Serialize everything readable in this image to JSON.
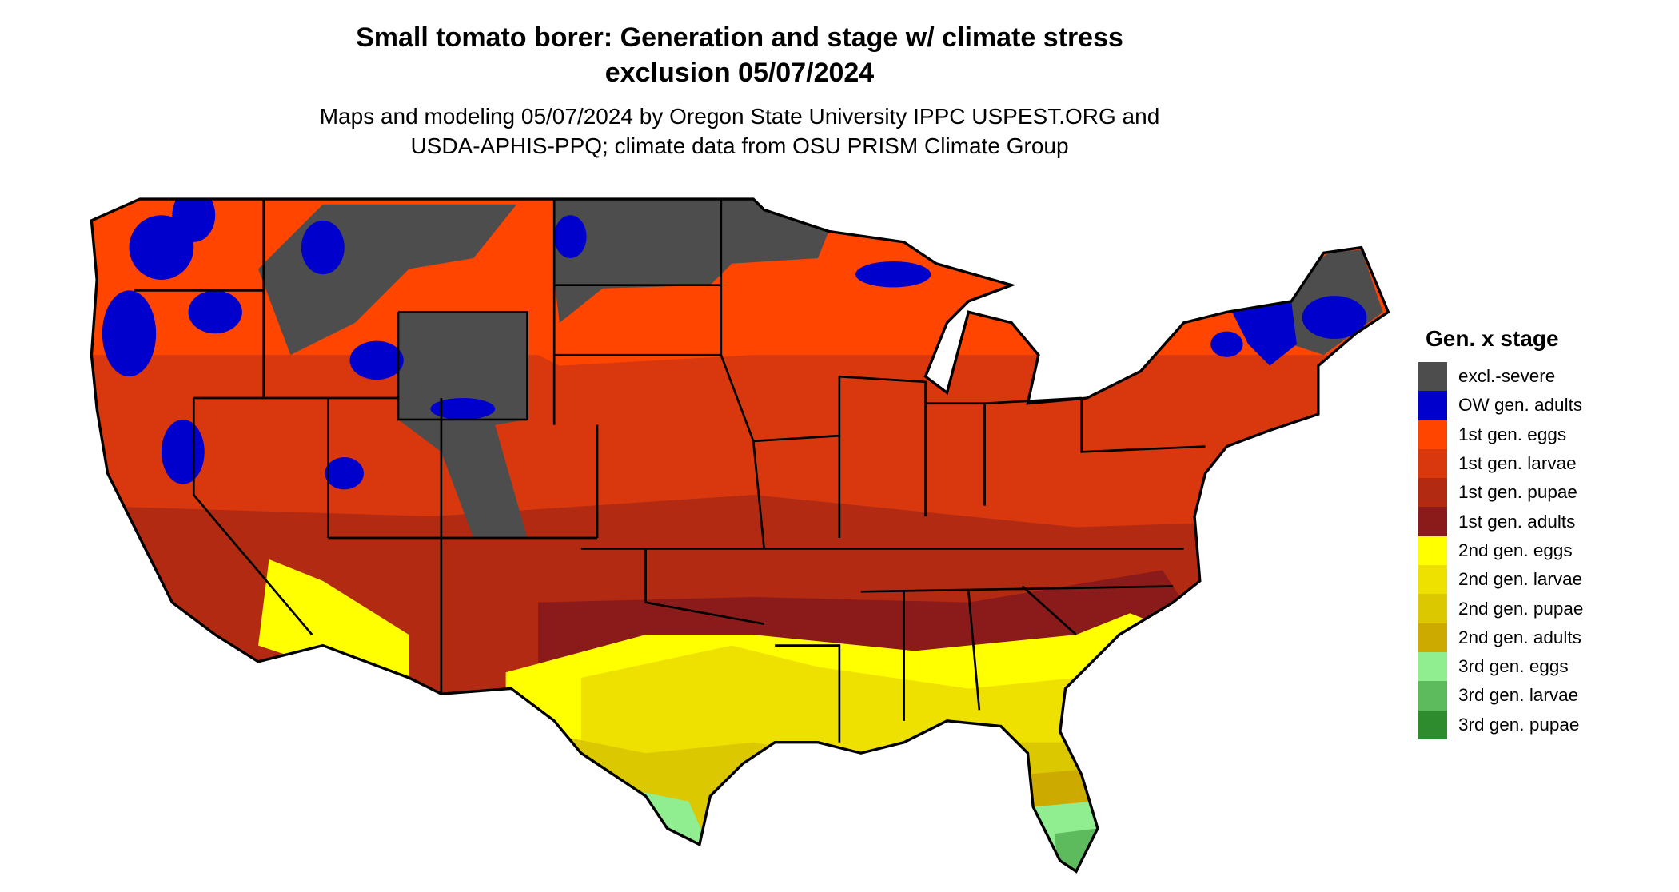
{
  "chart_data": {
    "type": "heatmap",
    "title": "Small tomato borer: Generation and stage w/ climate stress exclusion 05/07/2024",
    "title_lines": [
      "Small tomato borer: Generation and stage w/ climate stress",
      "exclusion 05/07/2024"
    ],
    "subtitle_lines": [
      "Maps and modeling 05/07/2024 by Oregon State University IPPC USPEST.ORG and",
      "USDA-APHIS-PPQ; climate data from OSU PRISM Climate Group"
    ],
    "region": "Contiguous United States",
    "legend_placement": "right",
    "legend": {
      "title": "Gen. x stage",
      "items": [
        {
          "label": "excl.-severe",
          "color": "#4d4d4d"
        },
        {
          "label": "OW gen. adults",
          "color": "#0000cd"
        },
        {
          "label": "1st gen. eggs",
          "color": "#ff4500"
        },
        {
          "label": "1st gen. larvae",
          "color": "#d9380f"
        },
        {
          "label": "1st gen. pupae",
          "color": "#b22a12"
        },
        {
          "label": "1st gen. adults",
          "color": "#8b1a1a"
        },
        {
          "label": "2nd gen. eggs",
          "color": "#ffff00"
        },
        {
          "label": "2nd gen. larvae",
          "color": "#eee100"
        },
        {
          "label": "2nd gen. pupae",
          "color": "#dcc800"
        },
        {
          "label": "2nd gen. adults",
          "color": "#ccaa00"
        },
        {
          "label": "3rd gen. eggs",
          "color": "#90ee90"
        },
        {
          "label": "3rd gen. larvae",
          "color": "#5dbb5d"
        },
        {
          "label": "3rd gen. pupae",
          "color": "#2e8b2e"
        }
      ]
    }
  }
}
